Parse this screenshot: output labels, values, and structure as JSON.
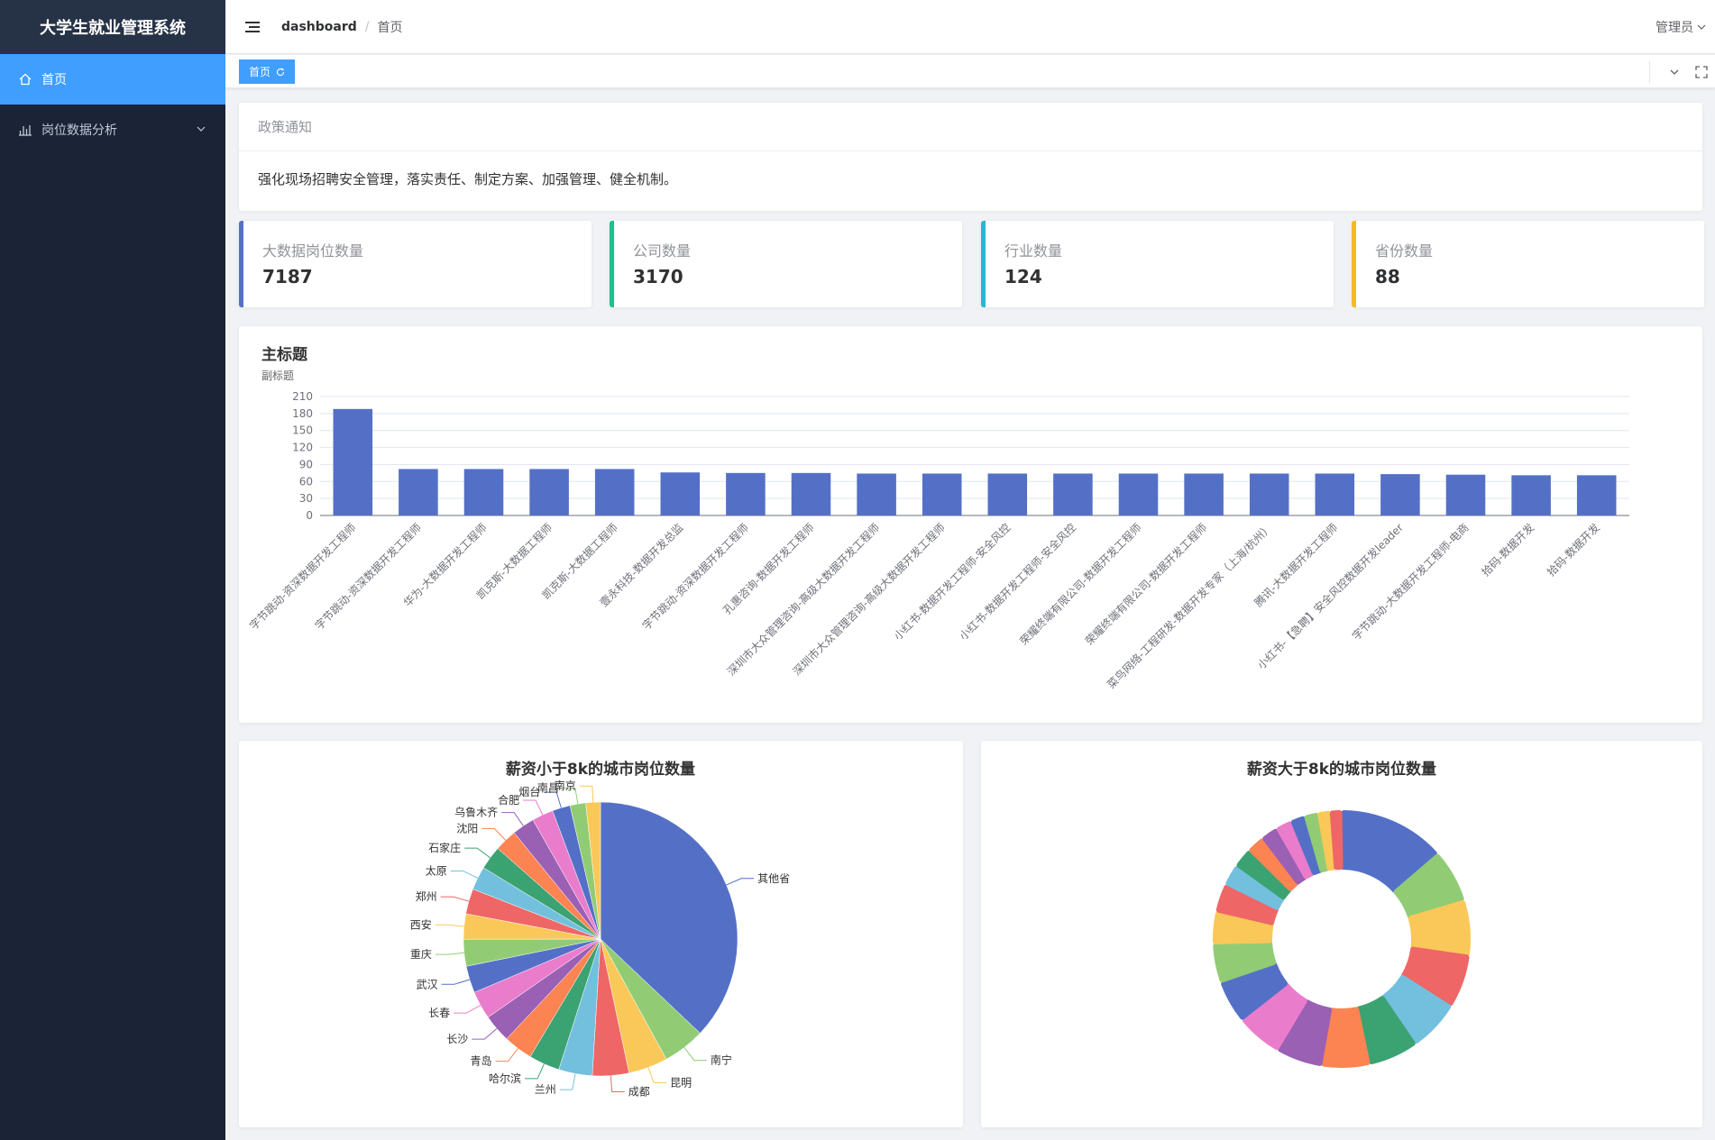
{
  "app": {
    "title": "大学生就业管理系统"
  },
  "sidebar": {
    "items": [
      {
        "label": "首页",
        "icon": "home-icon",
        "active": true
      },
      {
        "label": "岗位数据分析",
        "icon": "chart-icon",
        "active": false
      }
    ]
  },
  "header": {
    "breadcrumb": [
      "dashboard",
      "首页"
    ],
    "user": "管理员"
  },
  "tags": {
    "active": "首页"
  },
  "notice": {
    "title": "政策通知",
    "body": "强化现场招聘安全管理，落实责任、制定方案、加强管理、健全机制。"
  },
  "stats": [
    {
      "label": "大数据岗位数量",
      "value": "7187",
      "color": "#5470c6"
    },
    {
      "label": "公司数量",
      "value": "3170",
      "color": "#1fbe8a"
    },
    {
      "label": "行业数量",
      "value": "124",
      "color": "#27b7d0"
    },
    {
      "label": "省份数量",
      "value": "88",
      "color": "#f7b924"
    }
  ],
  "chart_data": [
    {
      "type": "bar",
      "title": "主标题",
      "subtitle": "副标题",
      "ylim": [
        0,
        210
      ],
      "yticks": [
        0,
        30,
        60,
        90,
        120,
        150,
        180,
        210
      ],
      "color": "#5470c6",
      "categories": [
        "字节跳动-资深数据开发工程师",
        "字节跳动-资深数据开发工程师",
        "华为-大数据开发工程师",
        "凯克斯-大数据工程师",
        "凯克斯-大数据工程师",
        "壹永科技-数据开发总监",
        "字节跳动-资深数据开发工程师",
        "孔惠咨询-数据开发工程师",
        "深圳市大众管理咨询-高级大数据开发工程师",
        "深圳市大众管理咨询-高级大数据开发工程师",
        "小红书-数据开发工程师-安全风控",
        "小红书-数据开发工程师-安全风控",
        "荣耀终端有限公司-数据开发工程师",
        "荣耀终端有限公司-数据开发工程师",
        "菜鸟网络-工程研发-数据开发专家（上海/杭州）",
        "腾讯-大数据开发工程师",
        "小红书-【急聘】安全风控数据开发leader",
        "字节跳动-大数据开发工程师-电商",
        "拾码-数据开发",
        "拾码-数据开发"
      ],
      "values": [
        188,
        82,
        82,
        82,
        82,
        76,
        75,
        75,
        74,
        74,
        74,
        74,
        74,
        74,
        74,
        74,
        73,
        72,
        71,
        71
      ]
    },
    {
      "type": "pie",
      "title": "薪资小于8k的城市岗位数量",
      "categories": [
        "其他省",
        "南宁",
        "昆明",
        "成都",
        "兰州",
        "哈尔滨",
        "青岛",
        "长沙",
        "长春",
        "武汉",
        "重庆",
        "西安",
        "郑州",
        "太原",
        "石家庄",
        "沈阳",
        "乌鲁木齐",
        "合肥",
        "烟台",
        "南昌",
        "南京"
      ],
      "values": [
        560,
        75,
        70,
        65,
        60,
        55,
        52,
        50,
        50,
        48,
        48,
        45,
        45,
        42,
        42,
        40,
        40,
        38,
        32,
        28,
        26
      ]
    },
    {
      "type": "pie",
      "subtype": "donut",
      "title": "薪资大于8k的城市岗位数量",
      "values": [
        300,
        150,
        155,
        150,
        145,
        140,
        135,
        130,
        130,
        120,
        110,
        90,
        80,
        60,
        55,
        50,
        48,
        45,
        40,
        38,
        35,
        32
      ]
    }
  ],
  "palette": [
    "#5470c6",
    "#91cc75",
    "#fac858",
    "#ee6666",
    "#73c0de",
    "#3ba272",
    "#fc8452",
    "#9a60b4",
    "#ea7ccc"
  ]
}
